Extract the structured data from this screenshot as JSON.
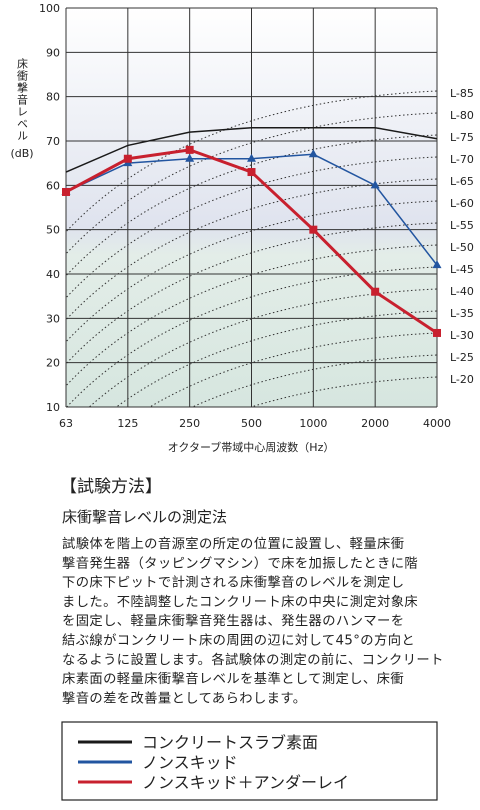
{
  "chart_data": {
    "type": "line",
    "y_label": "床衝撃音レベル",
    "y_unit": "(dB)",
    "x_label": "オクターブ帯域中心周波数（Hz）",
    "categories": [
      "63",
      "125",
      "250",
      "500",
      "1000",
      "2000",
      "4000"
    ],
    "ylim": [
      10,
      100
    ],
    "yticks": [
      10,
      20,
      30,
      40,
      50,
      60,
      70,
      80,
      90,
      100
    ],
    "grid": true,
    "reference_curves": [
      "L-85",
      "L-80",
      "L-75",
      "L-70",
      "L-65",
      "L-60",
      "L-55",
      "L-50",
      "L-45",
      "L-40",
      "L-35",
      "L-30",
      "L-25",
      "L-20"
    ],
    "series": [
      {
        "name": "コンクリートスラブ素面",
        "color": "#1a1a1a",
        "marker": "none",
        "values": [
          63,
          69,
          72,
          73,
          73,
          73,
          70.5
        ]
      },
      {
        "name": "ノンスキッド",
        "color": "#2255a0",
        "marker": "triangle",
        "values": [
          58.5,
          65,
          66,
          66,
          67,
          60,
          42
        ]
      },
      {
        "name": "ノンスキッド＋アンダーレイ",
        "color": "#c8202e",
        "marker": "square",
        "values": [
          58.5,
          66,
          68,
          63,
          50,
          36,
          26.7
        ]
      }
    ]
  },
  "method": {
    "heading": "【試験方法】",
    "subheading": "床衝撃音レベルの測定法",
    "lines": [
      "試験体を階上の音源室の所定の位置に設置し、軽量床衝",
      "撃音発生器（タッピングマシン）で床を加振したときに階",
      "下の床下ピットで計測される床衝撃音のレベルを測定し",
      "ました。不陸調整したコンクリート床の中央に測定対象床",
      "を固定し、軽量床衝撃音発生器は、発生器のハンマーを",
      "結ぶ線がコンクリート床の周囲の辺に対して45°の方向と",
      "なるように設置します。各試験体の測定の前に、コンクリート",
      "床素面の軽量床衝撃音レベルを基準として測定し、床衝",
      "撃音の差を改善量としてあらわします。"
    ]
  }
}
